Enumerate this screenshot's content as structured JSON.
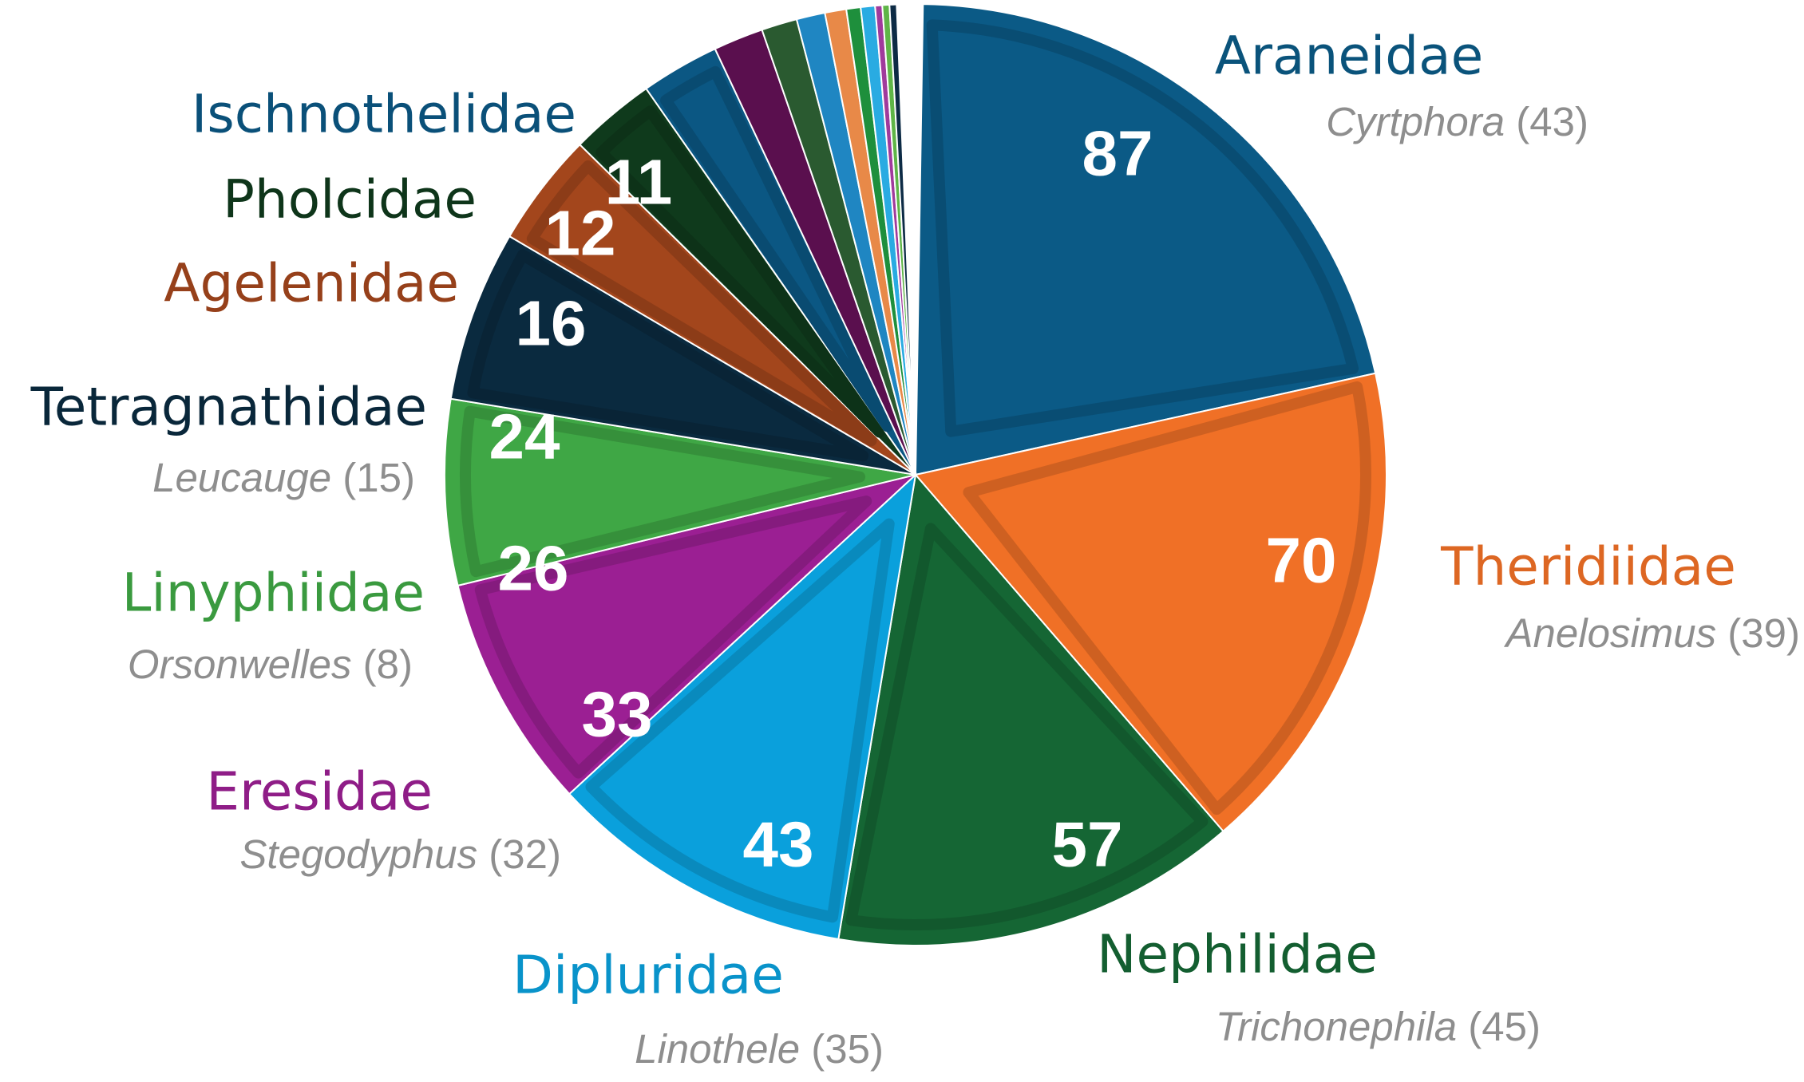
{
  "chart_data": {
    "type": "pie",
    "title": "",
    "start": "top, clockwise",
    "slices": [
      {
        "family": "Araneidae",
        "value": 87,
        "genus": "Cyrtphora",
        "genus_count": "43",
        "color": "#0b5a86"
      },
      {
        "family": "Theridiidae",
        "value": 70,
        "genus": "Anelosimus",
        "genus_count": "39",
        "color": "#f07026"
      },
      {
        "family": "Nephilidae",
        "value": 57,
        "genus": "Trichonephila",
        "genus_count": "45",
        "color": "#156634"
      },
      {
        "family": "Dipluridae",
        "value": 43,
        "genus": "Linothele",
        "genus_count": "35",
        "color": "#0aa0dc"
      },
      {
        "family": "Eresidae",
        "value": 33,
        "genus": "Stegodyphus",
        "genus_count": "32",
        "color": "#9b1f93"
      },
      {
        "family": "Linyphiidae",
        "value": 26,
        "genus": "Orsonwelles",
        "genus_count": "8",
        "color": "#3fa745"
      },
      {
        "family": "Tetragnathidae",
        "value": 24,
        "genus": "Leucauge",
        "genus_count": "15",
        "color": "#0a2a3f"
      },
      {
        "family": "Agelenidae",
        "value": 16,
        "genus": "",
        "genus_count": "",
        "color": "#a3461c"
      },
      {
        "family": "Pholcidae",
        "value": 12,
        "genus": "",
        "genus_count": "",
        "color": "#0f3a1c"
      },
      {
        "family": "Ischnothelidae",
        "value": 11,
        "genus": "",
        "genus_count": "",
        "color": "#0b5783"
      },
      {
        "family": "",
        "value": 7,
        "genus": "",
        "genus_count": "",
        "color": "#5a0f4e"
      },
      {
        "family": "",
        "value": 5,
        "genus": "",
        "genus_count": "",
        "color": "#2a5a30"
      },
      {
        "family": "",
        "value": 4,
        "genus": "",
        "genus_count": "",
        "color": "#1f86c2"
      },
      {
        "family": "",
        "value": 3,
        "genus": "",
        "genus_count": "",
        "color": "#e88948"
      },
      {
        "family": "",
        "value": 2,
        "genus": "",
        "genus_count": "",
        "color": "#1e8f3c"
      },
      {
        "family": "",
        "value": 2,
        "genus": "",
        "genus_count": "",
        "color": "#29abe2"
      },
      {
        "family": "",
        "value": 1,
        "genus": "",
        "genus_count": "",
        "color": "#a03a9c"
      },
      {
        "family": "",
        "value": 1,
        "genus": "",
        "genus_count": "",
        "color": "#5fb547"
      },
      {
        "family": "",
        "value": 1,
        "genus": "",
        "genus_count": "",
        "color": "#0d2b45"
      }
    ]
  }
}
